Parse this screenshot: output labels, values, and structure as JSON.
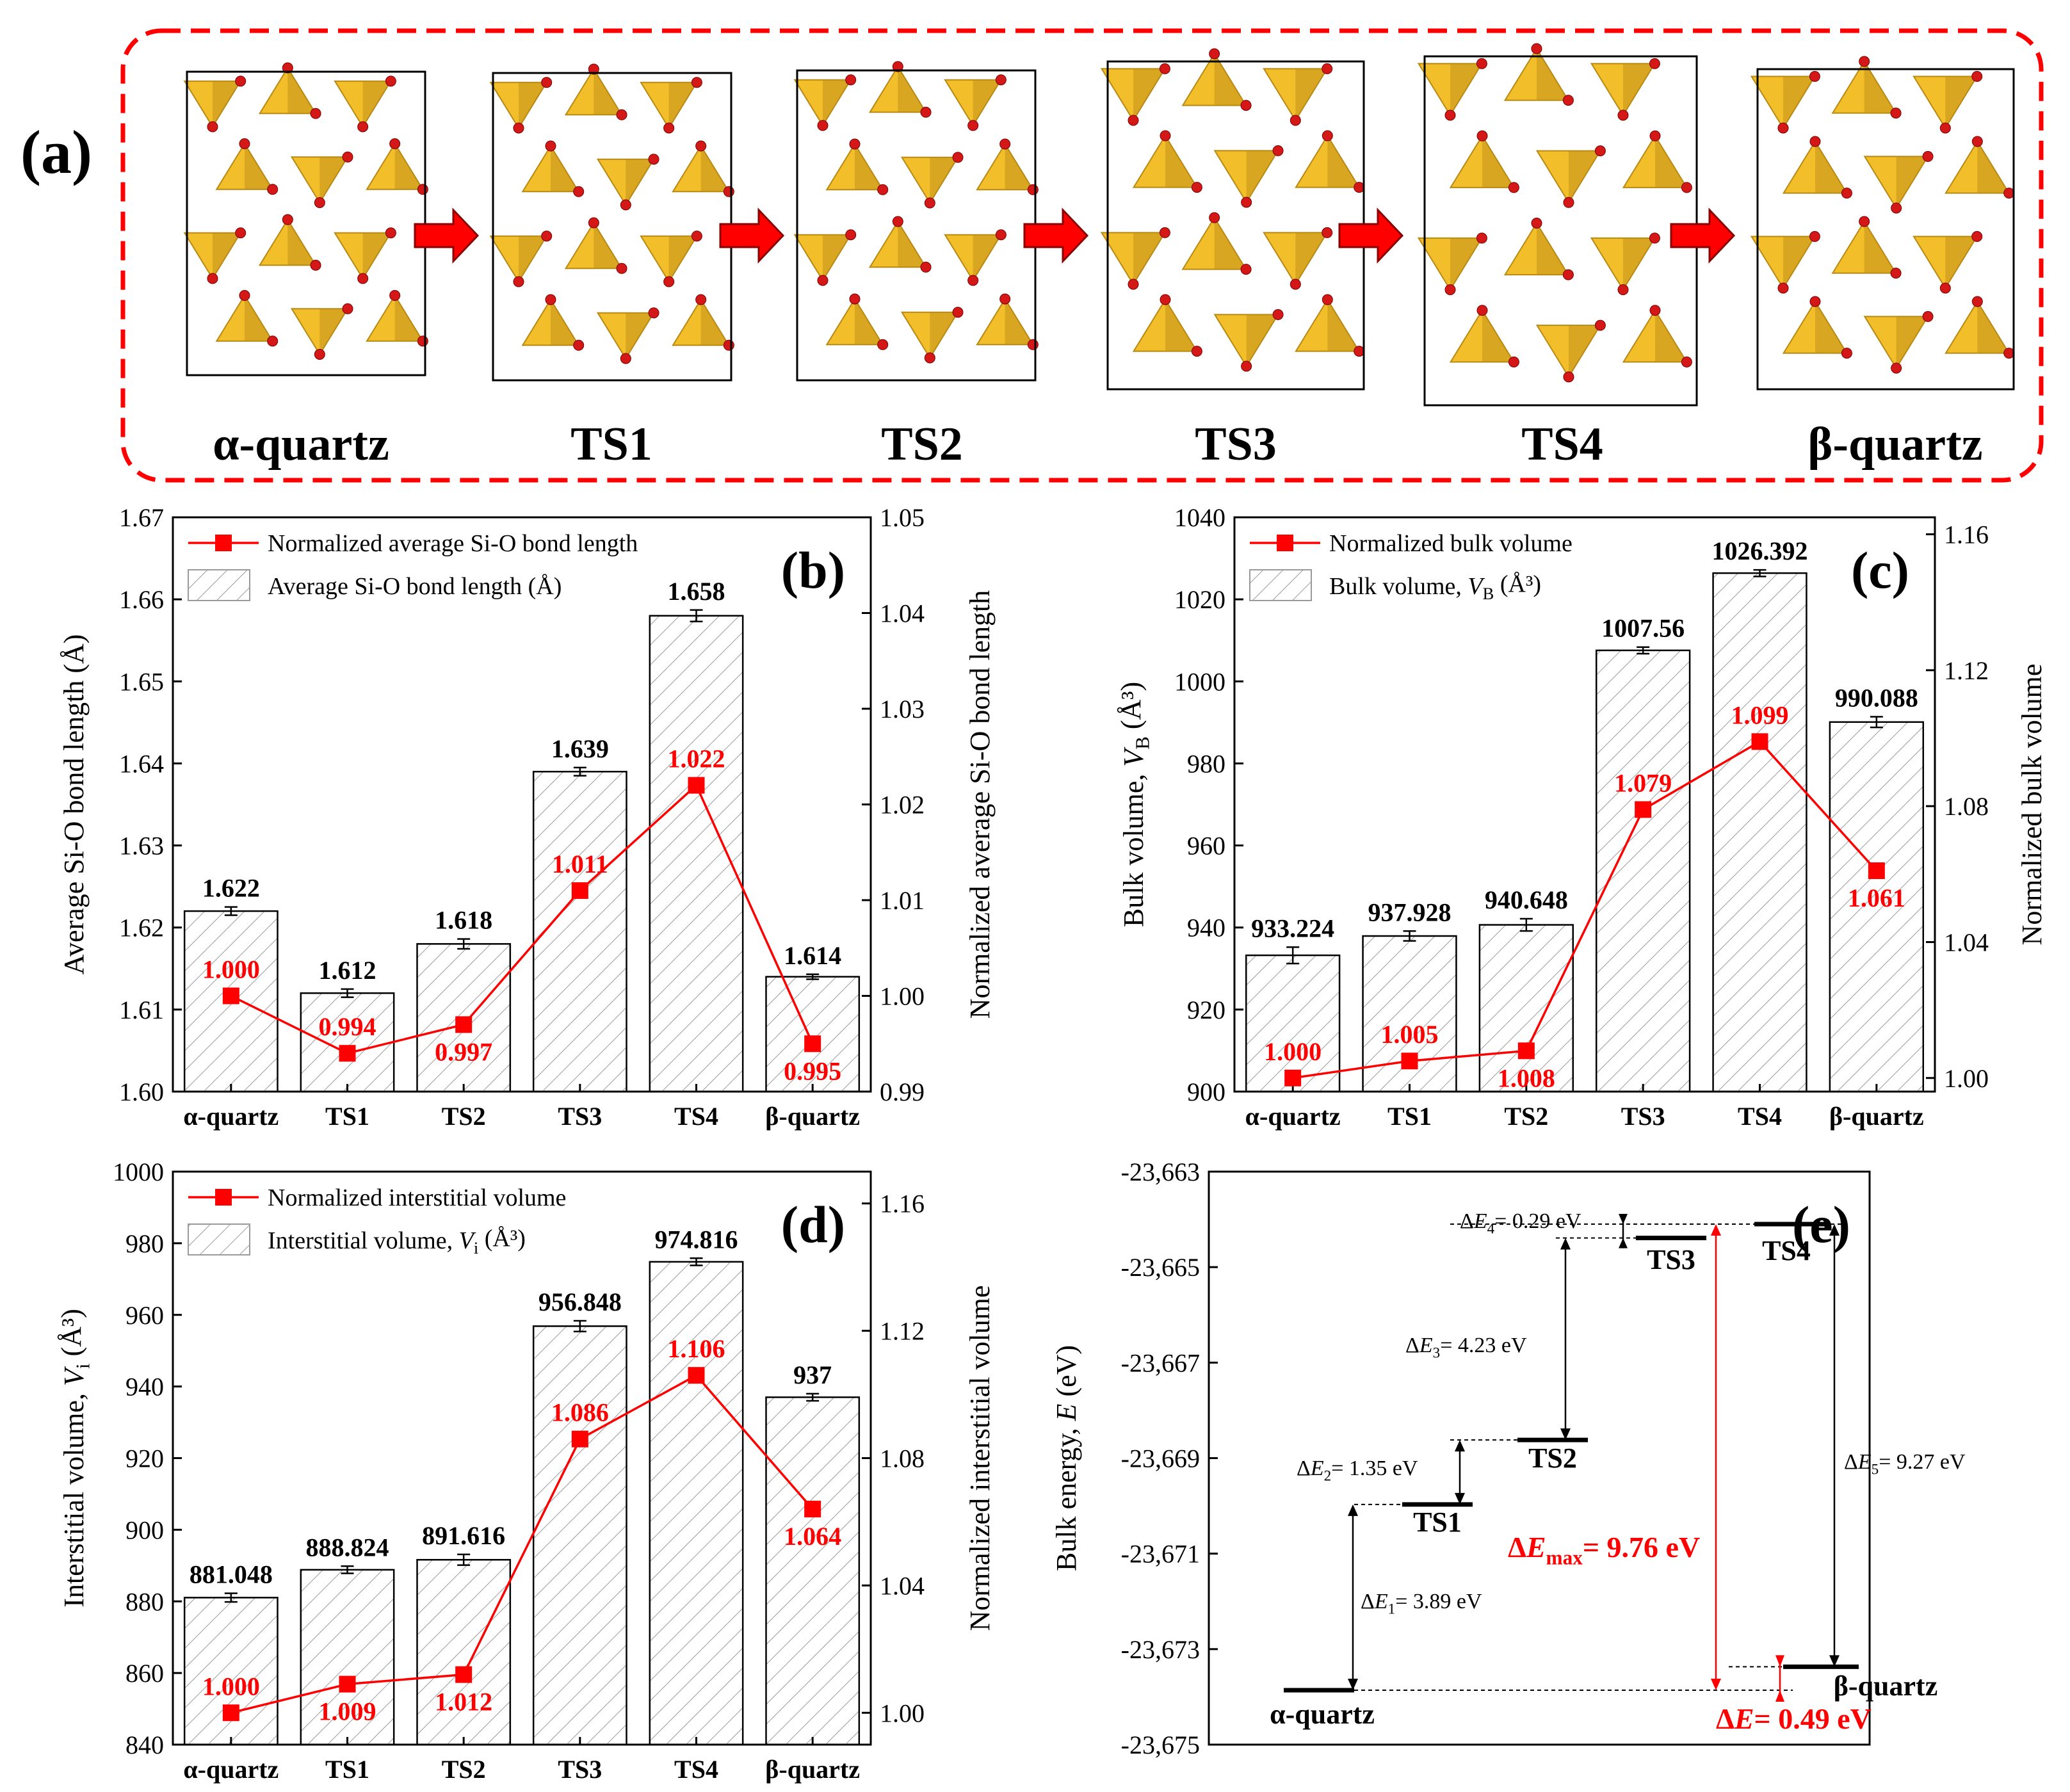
{
  "panel_a": {
    "label": "(a)",
    "states": [
      "α-quartz",
      "TS1",
      "TS2",
      "TS3",
      "TS4",
      "β-quartz"
    ]
  },
  "colors": {
    "red": "#ff0000",
    "black": "#000000",
    "gold": "#f2be2a",
    "gold_dark": "#b88a14",
    "oxygen": "#d41818"
  },
  "chart_data": [
    {
      "panel": "(b)",
      "type": "bar",
      "categories": [
        "α-quartz",
        "TS1",
        "TS2",
        "TS3",
        "TS4",
        "β-quartz"
      ],
      "series": [
        {
          "name": "Average Si-O bond length  (Å)",
          "axis": "left",
          "values": [
            1.622,
            1.612,
            1.618,
            1.639,
            1.658,
            1.614
          ],
          "labels": [
            "1.622",
            "1.612",
            "1.618",
            "1.639",
            "1.658",
            "1.614"
          ],
          "errors": [
            0.0005,
            0.0005,
            0.0006,
            0.0005,
            0.0007,
            0.0003
          ]
        },
        {
          "name": "Normalized average Si-O bond length",
          "axis": "right",
          "type": "line",
          "values": [
            1.0,
            0.994,
            0.997,
            1.011,
            1.022,
            0.995
          ],
          "labels": [
            "1.000",
            "0.994",
            "0.997",
            "1.011",
            "1.022",
            "0.995"
          ]
        }
      ],
      "ylabel": "Average Si-O bond length (Å)",
      "y2label": "Normalized average Si-O bond length",
      "ylim": [
        1.6,
        1.67
      ],
      "yticks": [
        "1.60",
        "1.61",
        "1.62",
        "1.63",
        "1.64",
        "1.65",
        "1.66",
        "1.67"
      ],
      "y2lim": [
        0.99,
        1.05
      ],
      "y2ticks": [
        "0.99",
        "1.00",
        "1.01",
        "1.02",
        "1.03",
        "1.04",
        "1.05"
      ]
    },
    {
      "panel": "(c)",
      "type": "bar",
      "categories": [
        "α-quartz",
        "TS1",
        "TS2",
        "TS3",
        "TS4",
        "β-quartz"
      ],
      "series": [
        {
          "name": "Bulk volume, V_B (Å³)",
          "axis": "left",
          "values": [
            933.224,
            937.928,
            940.648,
            1007.56,
            1026.392,
            990.088
          ],
          "labels": [
            "933.224",
            "937.928",
            "940.648",
            "1007.56",
            "1026.392",
            "990.088"
          ],
          "errors": [
            2.0,
            1.2,
            1.5,
            0.8,
            0.8,
            1.3
          ]
        },
        {
          "name": "Normalized bulk volume",
          "axis": "right",
          "type": "line",
          "values": [
            1.0,
            1.005,
            1.008,
            1.079,
            1.099,
            1.061
          ],
          "labels": [
            "1.000",
            "1.005",
            "1.008",
            "1.079",
            "1.099",
            "1.061"
          ]
        }
      ],
      "ylabel": "Bulk volume, V_B (Å³)",
      "y2label": "Normalized bulk volume",
      "ylim": [
        900,
        1040
      ],
      "yticks": [
        "900",
        "920",
        "940",
        "960",
        "980",
        "1000",
        "1020",
        "1040"
      ],
      "y2lim": [
        0.996,
        1.165
      ],
      "y2ticks": [
        "1.00",
        "1.04",
        "1.08",
        "1.12",
        "1.16"
      ]
    },
    {
      "panel": "(d)",
      "type": "bar",
      "categories": [
        "α-quartz",
        "TS1",
        "TS2",
        "TS3",
        "TS4",
        "β-quartz"
      ],
      "series": [
        {
          "name": "Interstitial volume, V_i (Å³)",
          "axis": "left",
          "values": [
            881.048,
            888.824,
            891.616,
            956.848,
            974.816,
            937
          ],
          "labels": [
            "881.048",
            "888.824",
            "891.616",
            "956.848",
            "974.816",
            "937"
          ],
          "errors": [
            1.2,
            1.0,
            1.5,
            1.5,
            1.0,
            1.0
          ]
        },
        {
          "name": "Normalized interstitial volume",
          "axis": "right",
          "type": "line",
          "values": [
            1.0,
            1.009,
            1.012,
            1.086,
            1.106,
            1.064
          ],
          "labels": [
            "1.000",
            "1.009",
            "1.012",
            "1.086",
            "1.106",
            "1.064"
          ]
        }
      ],
      "ylabel": "Interstitial volume, V_i (Å³)",
      "y2label": "Normalized interstitial volume",
      "ylim": [
        840,
        1000
      ],
      "yticks": [
        "840",
        "860",
        "880",
        "900",
        "920",
        "940",
        "960",
        "980",
        "1000"
      ],
      "y2lim": [
        0.99,
        1.17
      ],
      "y2ticks": [
        "1.00",
        "1.04",
        "1.08",
        "1.12",
        "1.16"
      ]
    },
    {
      "panel": "(e)",
      "type": "energy-diagram",
      "ylabel": "Bulk energy, E (eV)",
      "ylim": [
        -23675,
        -23663
      ],
      "yticks": [
        "-23,663",
        "-23,665",
        "-23,667",
        "-23,669",
        "-23,671",
        "-23,673",
        "-23,675"
      ],
      "levels": [
        {
          "name": "α-quartz",
          "energy": -23673.86
        },
        {
          "name": "TS1",
          "energy": -23669.97
        },
        {
          "name": "TS2",
          "energy": -23668.62
        },
        {
          "name": "TS3",
          "energy": -23664.39
        },
        {
          "name": "TS4",
          "energy": -23664.1
        },
        {
          "name": "β-quartz",
          "energy": -23673.37
        }
      ],
      "differences": [
        {
          "sym": "E",
          "sub": "1",
          "text": "= 3.89 eV"
        },
        {
          "sym": "E",
          "sub": "2",
          "text": "= 1.35 eV"
        },
        {
          "sym": "E",
          "sub": "3",
          "text": "= 4.23 eV"
        },
        {
          "sym": "E",
          "sub": "4",
          "text": "= 0.29 eV"
        },
        {
          "sym": "E",
          "sub": "5",
          "text": "= 9.27 eV"
        }
      ],
      "dEmax": {
        "sym": "E",
        "sub": "max",
        "text": "= 9.76 eV"
      },
      "dE": {
        "sym": "E",
        "text": "= 0.49 eV"
      }
    }
  ]
}
